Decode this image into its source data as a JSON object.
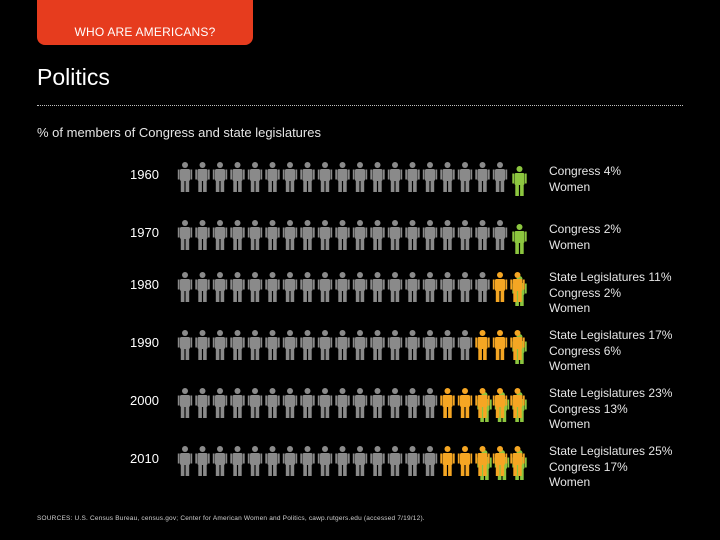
{
  "header": {
    "tab_label": "WHO ARE AMERICANS?",
    "title": "Politics"
  },
  "subtitle": "% of members of Congress and state legislatures",
  "colors": {
    "tab": "#e63c1e",
    "men": "#8a8a8a",
    "women_state_legislatures": "#f5a623",
    "women_congress": "#8cc63f",
    "background": "#000000"
  },
  "chart_data": {
    "type": "pictograph",
    "units_per_row": 20,
    "rows": [
      {
        "year": "1960",
        "lines": [
          "Congress 4%",
          "Women"
        ],
        "state_legislatures_pct": null,
        "congress_pct": 4
      },
      {
        "year": "1970",
        "lines": [
          "Congress 2%",
          "Women"
        ],
        "state_legislatures_pct": null,
        "congress_pct": 2
      },
      {
        "year": "1980",
        "lines": [
          "State Legislatures 11%",
          "Congress 2%",
          "Women"
        ],
        "state_legislatures_pct": 11,
        "congress_pct": 2
      },
      {
        "year": "1990",
        "lines": [
          "State Legislatures 17%",
          "Congress 6%",
          "Women"
        ],
        "state_legislatures_pct": 17,
        "congress_pct": 6
      },
      {
        "year": "2000",
        "lines": [
          "State Legislatures 23%",
          "Congress 13%",
          "Women"
        ],
        "state_legislatures_pct": 23,
        "congress_pct": 13
      },
      {
        "year": "2010",
        "lines": [
          "State Legislatures 25%",
          "Congress 17%",
          "Women"
        ],
        "state_legislatures_pct": 25,
        "congress_pct": 17
      }
    ]
  },
  "sources": "SOURCES: U.S. Census Bureau, census.gov; Center for American Women and Politics, cawp.rutgers.edu (accessed 7/19/12)."
}
